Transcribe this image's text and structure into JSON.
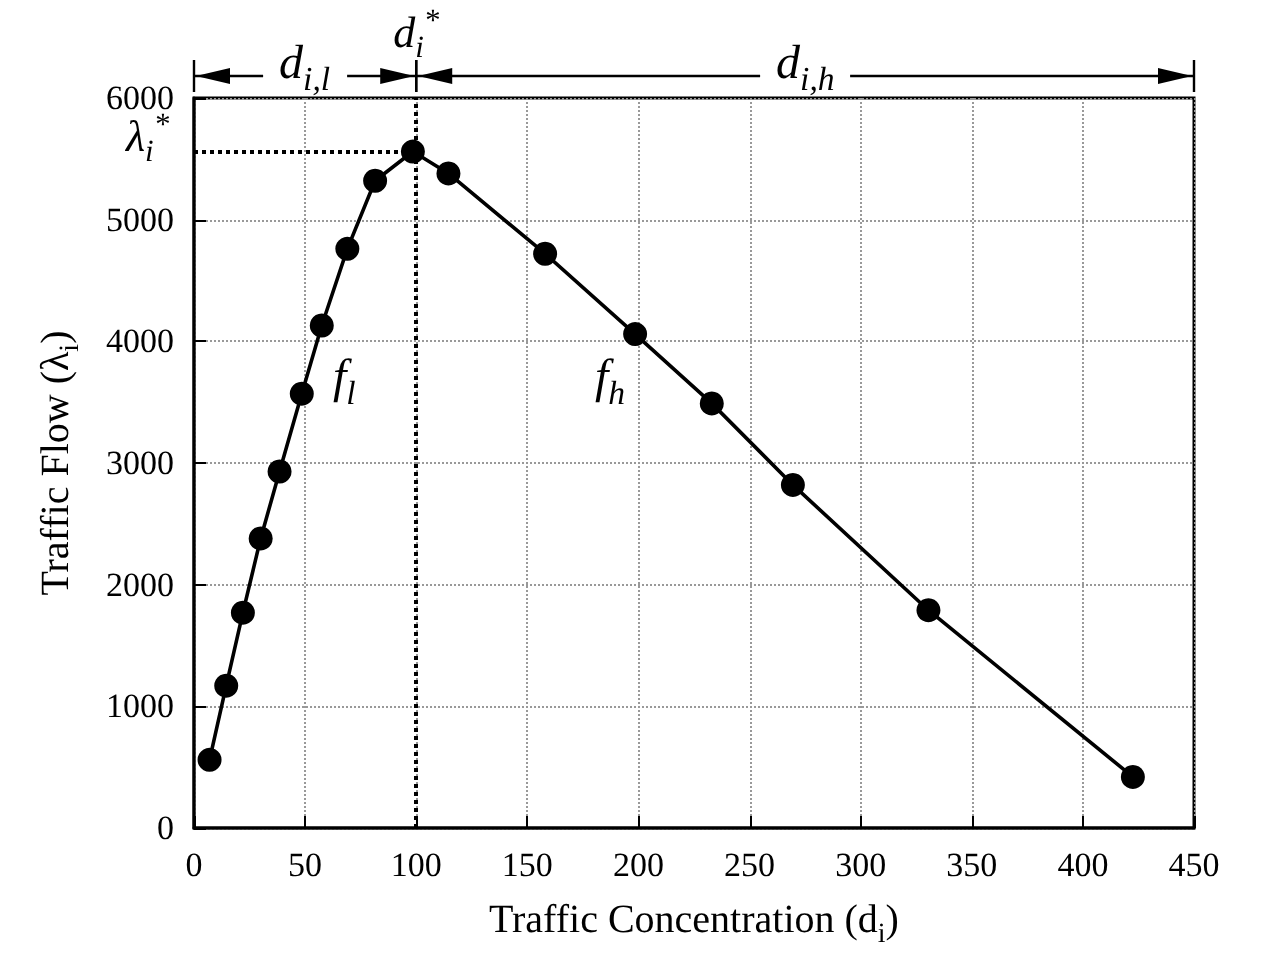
{
  "chart_data": {
    "type": "line",
    "xlabel": "Traffic Concentration (d$_{i}$)",
    "ylabel": "Traffic Flow (λ$_{i}$)",
    "series": [
      {
        "color": "#000000",
        "x": [
          7,
          14.5,
          22,
          30,
          38.5,
          48.5,
          57.5,
          69,
          81.5,
          98.5,
          114.5,
          158,
          198.5,
          233,
          269.5,
          330.5,
          422.5
        ],
        "values": [
          560,
          1170,
          1770,
          2380,
          2930,
          3570,
          4130,
          4760,
          5320,
          5560,
          5380,
          4720,
          4060,
          3490,
          2820,
          1790,
          420
        ]
      }
    ],
    "xlim": [
      0,
      450
    ],
    "xticks": [
      0,
      50,
      100,
      150,
      200,
      250,
      300,
      350,
      400,
      450
    ],
    "ylim": [
      0,
      6000
    ],
    "yticks": [
      0,
      1000,
      2000,
      3000,
      4000,
      5000,
      6000
    ],
    "grid": true,
    "marker": "circle",
    "line_style": "solid",
    "ref_lines": [
      {
        "axis": "x",
        "value": 100,
        "label": "d$_{i}$$^{*}$",
        "line_style": "dotted"
      },
      {
        "axis": "y",
        "value": 5560,
        "label": "λ$_{i}$$^{*}$",
        "line_style": "dotted"
      }
    ],
    "annotations": [
      "d$_{i,l}$",
      "d$_{i,h}$",
      "f$_{l}$",
      "f$_{h}$"
    ]
  }
}
